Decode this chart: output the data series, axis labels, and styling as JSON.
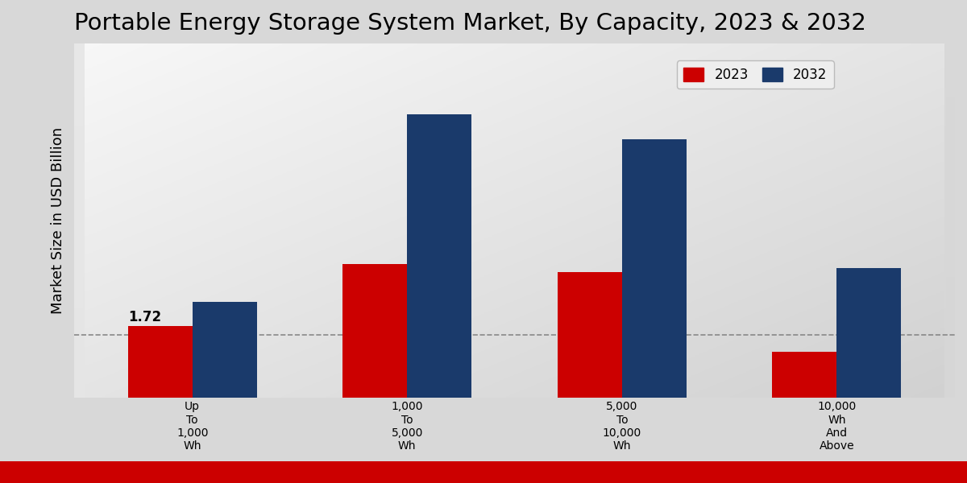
{
  "title": "Portable Energy Storage System Market, By Capacity, 2023 & 2032",
  "ylabel": "Market Size in USD Billion",
  "categories": [
    "Up\nTo\n1,000\nWh",
    "1,000\nTo\n5,000\nWh",
    "5,000\nTo\n10,000\nWh",
    "10,000\nWh\nAnd\nAbove"
  ],
  "values_2023": [
    1.72,
    3.2,
    3.0,
    1.1
  ],
  "values_2032": [
    2.3,
    6.8,
    6.2,
    3.1
  ],
  "color_2023": "#cc0000",
  "color_2032": "#1a3a6b",
  "annotation_value": "1.72",
  "annotation_category_idx": 0,
  "dashed_line_y": 1.5,
  "bg_top_left": "#f5f5f5",
  "bg_bottom_right": "#d0d0d0",
  "legend_labels": [
    "2023",
    "2032"
  ],
  "bar_width": 0.3,
  "ylim": [
    0,
    8.5
  ],
  "bottom_bar_color": "#cc0000",
  "title_fontsize": 21,
  "axis_label_fontsize": 13,
  "tick_fontsize": 10,
  "legend_fontsize": 12
}
